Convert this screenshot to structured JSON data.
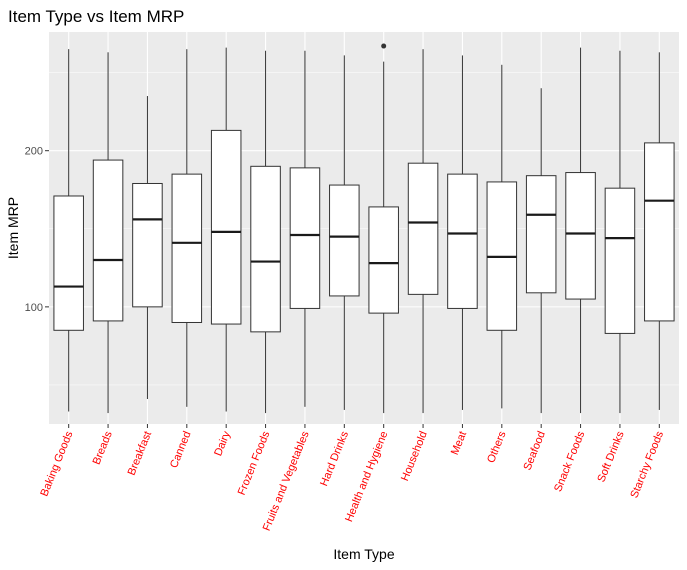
{
  "chart_data": {
    "type": "box",
    "title": "Item Type vs Item MRP",
    "xlabel": "Item Type",
    "ylabel": "Item MRP",
    "ylim": [
      25,
      276
    ],
    "yticks": [
      100,
      200
    ],
    "ytick_labels": [
      "100",
      "200"
    ],
    "grid": true,
    "panel_color": "#ebebeb",
    "grid_color": "#ffffff",
    "x_tick_label_color": "#ff0000",
    "categories": [
      "Baking Goods",
      "Breads",
      "Breakfast",
      "Canned",
      "Dairy",
      "Frozen Foods",
      "Fruits and Vegetables",
      "Hard Drinks",
      "Health and Hygiene",
      "Household",
      "Meat",
      "Others",
      "Seafood",
      "Snack Foods",
      "Soft Drinks",
      "Starchy Foods"
    ],
    "boxes": [
      {
        "min": 33,
        "q1": 85,
        "median": 113,
        "q3": 171,
        "max": 265,
        "outliers": []
      },
      {
        "min": 32,
        "q1": 91,
        "median": 130,
        "q3": 194,
        "max": 263,
        "outliers": []
      },
      {
        "min": 41,
        "q1": 100,
        "median": 156,
        "q3": 179,
        "max": 235,
        "outliers": []
      },
      {
        "min": 36,
        "q1": 90,
        "median": 141,
        "q3": 185,
        "max": 265,
        "outliers": []
      },
      {
        "min": 33,
        "q1": 89,
        "median": 148,
        "q3": 213,
        "max": 266,
        "outliers": []
      },
      {
        "min": 32,
        "q1": 84,
        "median": 129,
        "q3": 190,
        "max": 264,
        "outliers": []
      },
      {
        "min": 36,
        "q1": 99,
        "median": 146,
        "q3": 189,
        "max": 264,
        "outliers": []
      },
      {
        "min": 34,
        "q1": 107,
        "median": 145,
        "q3": 178,
        "max": 261,
        "outliers": []
      },
      {
        "min": 32,
        "q1": 96,
        "median": 128,
        "q3": 164,
        "max": 257,
        "outliers": [
          267
        ]
      },
      {
        "min": 32,
        "q1": 108,
        "median": 154,
        "q3": 192,
        "max": 265,
        "outliers": []
      },
      {
        "min": 34,
        "q1": 99,
        "median": 147,
        "q3": 185,
        "max": 261,
        "outliers": []
      },
      {
        "min": 35,
        "q1": 85,
        "median": 132,
        "q3": 180,
        "max": 255,
        "outliers": []
      },
      {
        "min": 32,
        "q1": 109,
        "median": 159,
        "q3": 184,
        "max": 240,
        "outliers": []
      },
      {
        "min": 32,
        "q1": 105,
        "median": 147,
        "q3": 186,
        "max": 266,
        "outliers": []
      },
      {
        "min": 32,
        "q1": 83,
        "median": 144,
        "q3": 176,
        "max": 264,
        "outliers": []
      },
      {
        "min": 34,
        "q1": 91,
        "median": 168,
        "q3": 205,
        "max": 263,
        "outliers": []
      }
    ]
  }
}
